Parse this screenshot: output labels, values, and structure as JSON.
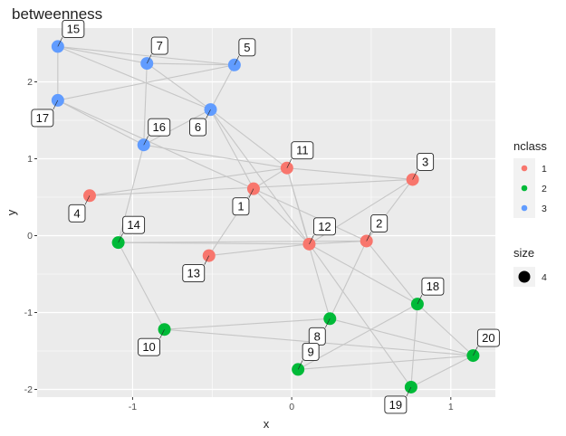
{
  "chart_data": {
    "type": "scatter",
    "title": "betweenness",
    "xlabel": "x",
    "ylabel": "y",
    "xlim": [
      -1.6,
      1.28
    ],
    "ylim": [
      -2.1,
      2.7
    ],
    "x_ticks": [
      -1,
      0,
      1
    ],
    "x_tick_labels": [
      "-1",
      "0",
      "1"
    ],
    "y_ticks": [
      -2,
      -1,
      0,
      1,
      2
    ],
    "y_tick_labels": [
      "-2",
      "-1",
      "0",
      "1",
      "2"
    ],
    "grid": true,
    "legend_position": "right",
    "colors": {
      "1": "#F8766D",
      "2": "#00BA38",
      "3": "#619CFF"
    },
    "nodes": [
      {
        "id": "1",
        "x": -0.24,
        "y": 0.61,
        "nclass": 1,
        "label_pos": "bl"
      },
      {
        "id": "2",
        "x": 0.47,
        "y": -0.07,
        "nclass": 1,
        "label_pos": "tr"
      },
      {
        "id": "3",
        "x": 0.76,
        "y": 0.73,
        "nclass": 1,
        "label_pos": "tr"
      },
      {
        "id": "4",
        "x": -1.27,
        "y": 0.52,
        "nclass": 1,
        "label_pos": "bl"
      },
      {
        "id": "5",
        "x": -0.36,
        "y": 2.22,
        "nclass": 3,
        "label_pos": "tr"
      },
      {
        "id": "6",
        "x": -0.51,
        "y": 1.64,
        "nclass": 3,
        "label_pos": "bl"
      },
      {
        "id": "7",
        "x": -0.91,
        "y": 2.24,
        "nclass": 3,
        "label_pos": "tr"
      },
      {
        "id": "8",
        "x": 0.24,
        "y": -1.08,
        "nclass": 2,
        "label_pos": "bl"
      },
      {
        "id": "9",
        "x": 0.04,
        "y": -1.74,
        "nclass": 2,
        "label_pos": "tr"
      },
      {
        "id": "10",
        "x": -0.8,
        "y": -1.22,
        "nclass": 2,
        "label_pos": "bl"
      },
      {
        "id": "11",
        "x": -0.03,
        "y": 0.88,
        "nclass": 1,
        "label_pos": "tr"
      },
      {
        "id": "12",
        "x": 0.11,
        "y": -0.11,
        "nclass": 1,
        "label_pos": "tr"
      },
      {
        "id": "13",
        "x": -0.52,
        "y": -0.26,
        "nclass": 1,
        "label_pos": "bl"
      },
      {
        "id": "14",
        "x": -1.09,
        "y": -0.09,
        "nclass": 2,
        "label_pos": "tr"
      },
      {
        "id": "15",
        "x": -1.47,
        "y": 2.46,
        "nclass": 3,
        "label_pos": "tr"
      },
      {
        "id": "16",
        "x": -0.93,
        "y": 1.18,
        "nclass": 3,
        "label_pos": "tr"
      },
      {
        "id": "17",
        "x": -1.47,
        "y": 1.76,
        "nclass": 3,
        "label_pos": "bl"
      },
      {
        "id": "18",
        "x": 0.79,
        "y": -0.89,
        "nclass": 2,
        "label_pos": "tr"
      },
      {
        "id": "19",
        "x": 0.75,
        "y": -1.97,
        "nclass": 2,
        "label_pos": "bl"
      },
      {
        "id": "20",
        "x": 1.14,
        "y": -1.56,
        "nclass": 2,
        "label_pos": "tr"
      }
    ],
    "edges": [
      [
        "15",
        "7"
      ],
      [
        "15",
        "5"
      ],
      [
        "15",
        "6"
      ],
      [
        "7",
        "5"
      ],
      [
        "7",
        "16"
      ],
      [
        "7",
        "6"
      ],
      [
        "5",
        "6"
      ],
      [
        "5",
        "17"
      ],
      [
        "17",
        "15"
      ],
      [
        "17",
        "16"
      ],
      [
        "17",
        "1"
      ],
      [
        "6",
        "16"
      ],
      [
        "6",
        "1"
      ],
      [
        "6",
        "11"
      ],
      [
        "6",
        "12"
      ],
      [
        "16",
        "11"
      ],
      [
        "16",
        "14"
      ],
      [
        "4",
        "11"
      ],
      [
        "4",
        "3"
      ],
      [
        "1",
        "11"
      ],
      [
        "1",
        "13"
      ],
      [
        "1",
        "12"
      ],
      [
        "1",
        "2"
      ],
      [
        "11",
        "3"
      ],
      [
        "11",
        "12"
      ],
      [
        "11",
        "8"
      ],
      [
        "3",
        "12"
      ],
      [
        "3",
        "2"
      ],
      [
        "14",
        "12"
      ],
      [
        "14",
        "2"
      ],
      [
        "14",
        "10"
      ],
      [
        "13",
        "12"
      ],
      [
        "12",
        "2"
      ],
      [
        "12",
        "18"
      ],
      [
        "2",
        "8"
      ],
      [
        "2",
        "18"
      ],
      [
        "8",
        "20"
      ],
      [
        "8",
        "10"
      ],
      [
        "10",
        "20"
      ],
      [
        "18",
        "9"
      ],
      [
        "18",
        "20"
      ],
      [
        "18",
        "19"
      ],
      [
        "9",
        "20"
      ],
      [
        "19",
        "20"
      ],
      [
        "19",
        "12"
      ]
    ],
    "legend": {
      "nclass_title": "nclass",
      "nclass_items": [
        {
          "label": "1",
          "color": "#F8766D"
        },
        {
          "label": "2",
          "color": "#00BA38"
        },
        {
          "label": "3",
          "color": "#619CFF"
        }
      ],
      "size_title": "size",
      "size_items": [
        {
          "label": "4"
        }
      ]
    }
  }
}
